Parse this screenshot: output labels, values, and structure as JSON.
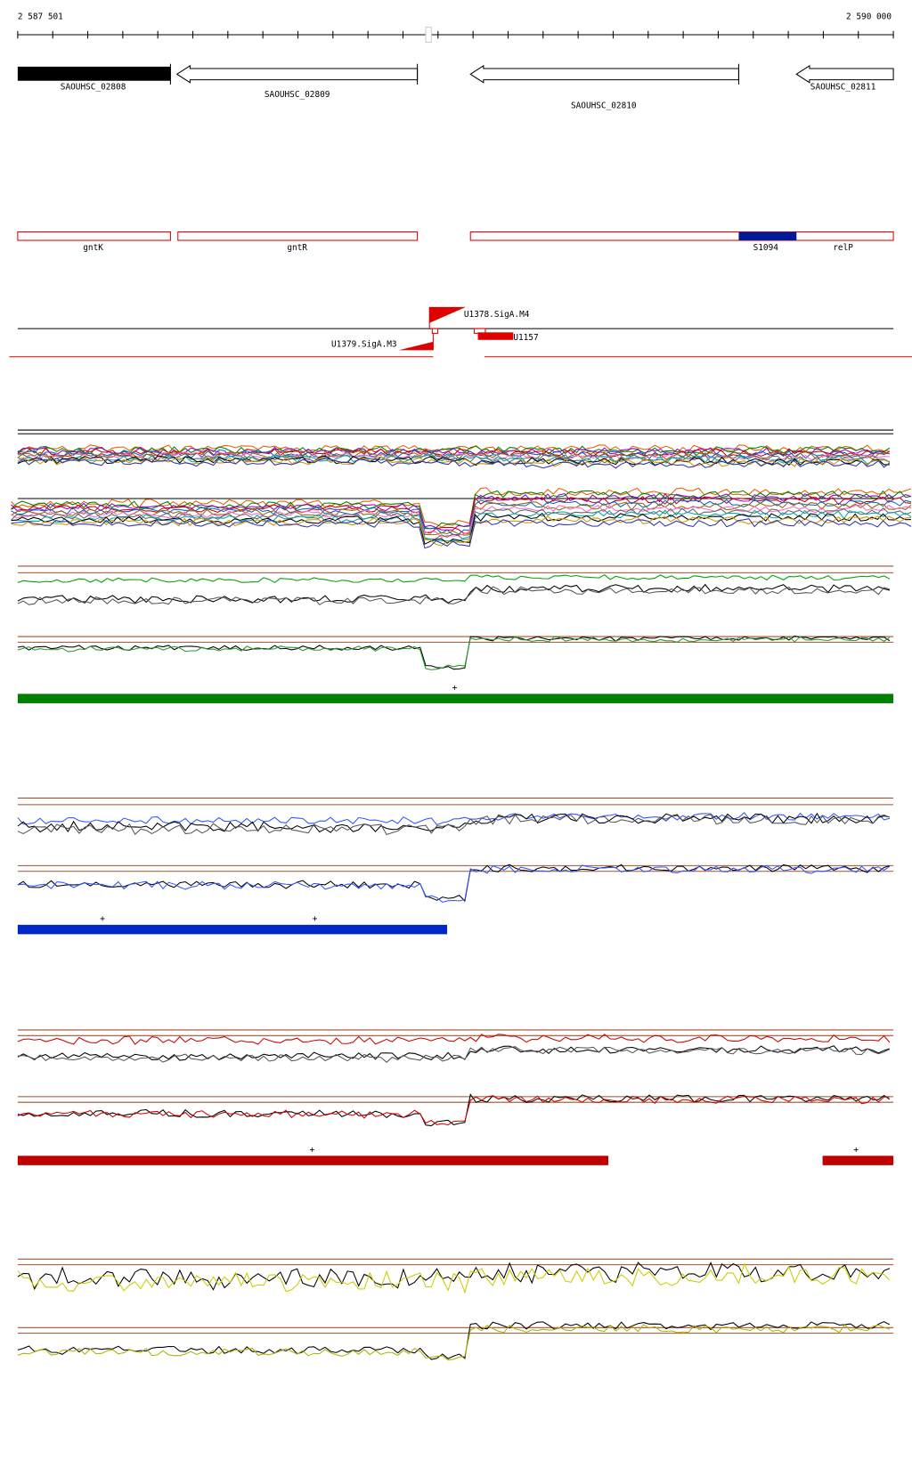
{
  "ruler": {
    "start": "2 587 501",
    "end": "2 590 000"
  },
  "genes": [
    {
      "label": "SAOUHSC_02808"
    },
    {
      "label": "SAOUHSC_02809"
    },
    {
      "label": "SAOUHSC_02810"
    },
    {
      "label": "SAOUHSC_02811"
    }
  ],
  "features": [
    {
      "label": "gntK"
    },
    {
      "label": "gntR"
    },
    {
      "label": "S1094"
    },
    {
      "label": "relP"
    }
  ],
  "promoters": [
    {
      "label": "U1378.SigA.M4"
    },
    {
      "label": "U1379.SigA.M3"
    },
    {
      "label": "U1157"
    }
  ],
  "tracks": [
    {
      "markers": [
        "+"
      ]
    },
    {
      "markers": [
        "+",
        "+"
      ]
    },
    {
      "markers": [
        "+",
        "+"
      ]
    }
  ]
}
